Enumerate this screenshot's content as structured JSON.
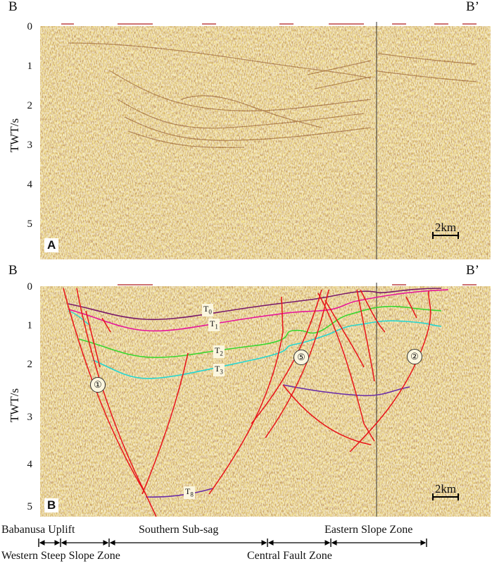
{
  "figure": {
    "corner_left": "B",
    "corner_right": "B’",
    "y_axis_label": "TWT/s",
    "y_ticks": [
      "0",
      "1",
      "2",
      "3",
      "4",
      "5"
    ],
    "scale_bar": "2km"
  },
  "panels": [
    {
      "letter": "A"
    },
    {
      "letter": "B"
    }
  ],
  "horizons": [
    {
      "base": "T",
      "sub": "0",
      "color": "#7a1a6a"
    },
    {
      "base": "T",
      "sub": "1",
      "color": "#e6179a"
    },
    {
      "base": "T",
      "sub": "2",
      "color": "#39d62e"
    },
    {
      "base": "T",
      "sub": "3",
      "color": "#27d6d0"
    },
    {
      "base": "T",
      "sub": "8",
      "color": "#6a2ca8"
    }
  ],
  "faults": [
    "①",
    "⑤",
    "②"
  ],
  "fault_color": "#e8141a",
  "zones": {
    "top_row": [
      "Babanusa Uplift",
      "Southern Sub-sag",
      "Eastern Slope Zone"
    ],
    "bottom_row": [
      "Western Steep Slope Zone",
      "Central Fault Zone"
    ]
  }
}
